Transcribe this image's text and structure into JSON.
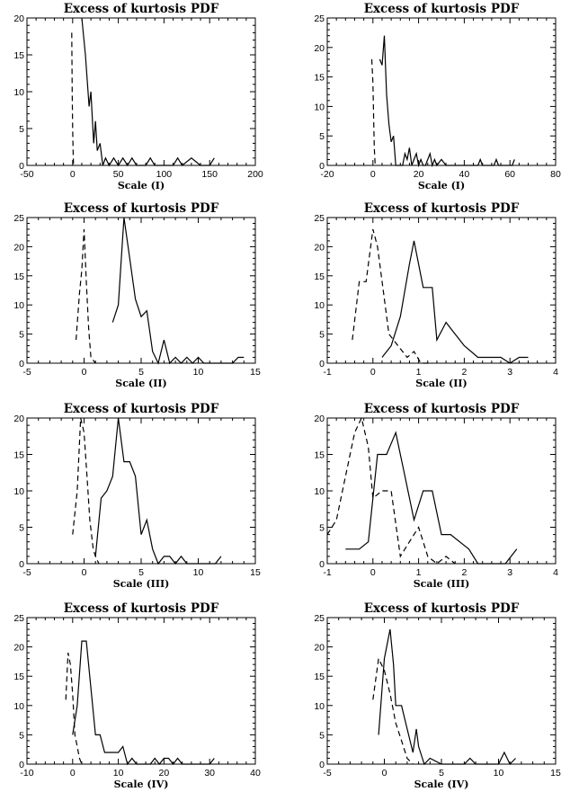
{
  "chart_data": [
    {
      "type": "line",
      "title": "Excess of kurtosis PDF",
      "xlabel": "Scale (I)",
      "xlim": [
        -50,
        200
      ],
      "ylim": [
        0,
        20
      ],
      "xticks": [
        -50,
        0,
        50,
        100,
        150,
        200
      ],
      "yticks": [
        0,
        5,
        10,
        15,
        20
      ],
      "series": [
        {
          "style": "solid",
          "x": [
            10,
            14,
            18,
            20,
            23,
            25,
            27,
            30,
            33,
            36,
            40,
            45,
            50,
            55,
            60,
            65,
            70,
            75,
            80,
            85,
            90,
            100,
            110,
            115,
            120,
            130,
            140,
            150,
            155
          ],
          "y": [
            20,
            15,
            8,
            10,
            3,
            6,
            2,
            3,
            0,
            1,
            0,
            1,
            0,
            1,
            0,
            1,
            0,
            0,
            0,
            1,
            0,
            0,
            0,
            1,
            0,
            1,
            0,
            0,
            1
          ]
        },
        {
          "style": "dashed",
          "x": [
            -1,
            -0.5,
            0,
            0.5,
            1
          ],
          "y": [
            18,
            10,
            5,
            2,
            0
          ]
        }
      ]
    },
    {
      "type": "line",
      "title": "Excess of kurtosis PDF",
      "xlabel": "Scale (I)",
      "xlim": [
        -20,
        80
      ],
      "ylim": [
        0,
        25
      ],
      "xticks": [
        -20,
        0,
        20,
        40,
        60,
        80
      ],
      "yticks": [
        0,
        5,
        10,
        15,
        20,
        25
      ],
      "series": [
        {
          "style": "solid",
          "x": [
            3,
            4,
            5,
            6,
            7,
            8,
            9,
            10,
            11,
            13,
            14,
            15,
            16,
            17,
            18,
            19,
            20,
            21,
            22,
            23,
            25,
            26,
            27,
            28,
            30,
            32,
            46,
            47,
            48,
            53,
            54,
            55,
            61,
            62
          ],
          "y": [
            18,
            17,
            22,
            12,
            7,
            4,
            5,
            0,
            0,
            0,
            2,
            1,
            3,
            0,
            1,
            2,
            0,
            1,
            0,
            0,
            2,
            0,
            1,
            0,
            1,
            0,
            0,
            1,
            0,
            0,
            1,
            0,
            0,
            1
          ]
        },
        {
          "style": "dashed",
          "x": [
            -0.5,
            0,
            0.3,
            0.6,
            1
          ],
          "y": [
            18,
            14,
            8,
            3,
            0
          ]
        }
      ]
    },
    {
      "type": "line",
      "title": "Excess of kurtosis PDF",
      "xlabel": "Scale (II)",
      "xlim": [
        -5,
        15
      ],
      "ylim": [
        0,
        25
      ],
      "xticks": [
        -5,
        0,
        5,
        10,
        15
      ],
      "yticks": [
        0,
        5,
        10,
        15,
        20,
        25
      ],
      "series": [
        {
          "style": "solid",
          "x": [
            2.5,
            3.0,
            3.5,
            4.0,
            4.5,
            5.0,
            5.5,
            6.0,
            6.5,
            7.0,
            7.5,
            8.0,
            8.5,
            9.0,
            9.5,
            10.0,
            10.5,
            11.0,
            11.5,
            12.0,
            12.5,
            13.0,
            13.5,
            14.0
          ],
          "y": [
            7,
            10,
            25,
            18,
            11,
            8,
            9,
            2,
            0,
            4,
            0,
            1,
            0,
            1,
            0,
            1,
            0,
            0,
            0,
            0,
            0,
            0,
            1,
            1
          ]
        },
        {
          "style": "dashed",
          "x": [
            -0.7,
            -0.4,
            -0.2,
            0.0,
            0.2,
            0.4,
            0.6,
            1.0
          ],
          "y": [
            4,
            12,
            16,
            23,
            14,
            6,
            1,
            0
          ]
        }
      ]
    },
    {
      "type": "line",
      "title": "Excess of kurtosis PDF",
      "xlabel": "Scale (II)",
      "xlim": [
        -1,
        4
      ],
      "ylim": [
        0,
        25
      ],
      "xticks": [
        -1,
        0,
        1,
        2,
        3,
        4
      ],
      "yticks": [
        0,
        5,
        10,
        15,
        20,
        25
      ],
      "series": [
        {
          "style": "solid",
          "x": [
            0.2,
            0.4,
            0.6,
            0.8,
            0.9,
            1.1,
            1.3,
            1.4,
            1.6,
            1.8,
            2.0,
            2.3,
            2.6,
            2.8,
            3.0,
            3.2,
            3.4
          ],
          "y": [
            1,
            3,
            8,
            17,
            21,
            13,
            13,
            4,
            7,
            5,
            3,
            1,
            1,
            1,
            0,
            1,
            1
          ]
        },
        {
          "style": "dashed",
          "x": [
            -0.45,
            -0.3,
            -0.15,
            0.0,
            0.1,
            0.2,
            0.35,
            0.55,
            0.75,
            0.9,
            1.05,
            1.3
          ],
          "y": [
            4,
            14,
            14,
            23,
            20,
            14,
            5,
            3,
            1,
            2,
            0,
            0
          ]
        }
      ]
    },
    {
      "type": "line",
      "title": "Excess of kurtosis PDF",
      "xlabel": "Scale (III)",
      "xlim": [
        -5,
        15
      ],
      "ylim": [
        0,
        20
      ],
      "xticks": [
        -5,
        0,
        5,
        10,
        15
      ],
      "yticks": [
        0,
        5,
        10,
        15,
        20
      ],
      "series": [
        {
          "style": "solid",
          "x": [
            1.0,
            1.5,
            2.0,
            2.5,
            3.0,
            3.5,
            4.0,
            4.5,
            5.0,
            5.5,
            6.0,
            6.5,
            7.0,
            7.5,
            8.0,
            8.5,
            9.0,
            9.5,
            10.0,
            10.5,
            11.0,
            11.5,
            12.0
          ],
          "y": [
            1,
            9,
            10,
            12,
            20,
            14,
            14,
            12,
            4,
            6,
            2,
            0,
            1,
            1,
            0,
            1,
            0,
            0,
            0,
            0,
            0,
            0,
            1
          ]
        },
        {
          "style": "dashed",
          "x": [
            -1.0,
            -0.6,
            -0.3,
            0.0,
            0.3,
            0.5,
            0.8,
            1.0,
            1.3
          ],
          "y": [
            4,
            10,
            20,
            18,
            11,
            6,
            2,
            1,
            0
          ]
        }
      ]
    },
    {
      "type": "line",
      "title": "Excess of kurtosis PDF",
      "xlabel": "Scale (III)",
      "xlim": [
        -1,
        4
      ],
      "ylim": [
        0,
        20
      ],
      "xticks": [
        -1,
        0,
        1,
        2,
        3,
        4
      ],
      "yticks": [
        0,
        5,
        10,
        15,
        20
      ],
      "series": [
        {
          "style": "solid",
          "x": [
            -0.6,
            -0.3,
            -0.1,
            0.1,
            0.3,
            0.5,
            0.7,
            0.9,
            1.1,
            1.3,
            1.5,
            1.7,
            1.9,
            2.1,
            2.3,
            2.5,
            2.7,
            2.9,
            3.15
          ],
          "y": [
            2,
            2,
            3,
            15,
            15,
            18,
            12,
            6,
            10,
            10,
            4,
            4,
            3,
            2,
            0,
            0,
            0,
            0,
            2
          ]
        },
        {
          "style": "dashed",
          "x": [
            -1.0,
            -0.8,
            -0.6,
            -0.4,
            -0.25,
            -0.1,
            0.0,
            0.2,
            0.4,
            0.6,
            0.8,
            1.0,
            1.2,
            1.4,
            1.6,
            1.8
          ],
          "y": [
            4,
            6,
            12,
            18,
            20,
            16,
            9,
            10,
            10,
            1,
            3,
            5,
            1,
            0,
            1,
            0
          ]
        }
      ]
    },
    {
      "type": "line",
      "title": "Excess of kurtosis PDF",
      "xlabel": "Scale (IV)",
      "xlim": [
        -10,
        40
      ],
      "ylim": [
        0,
        25
      ],
      "xticks": [
        -10,
        0,
        10,
        20,
        30,
        40
      ],
      "yticks": [
        0,
        5,
        10,
        15,
        20,
        25
      ],
      "series": [
        {
          "style": "solid",
          "x": [
            0,
            1,
            2,
            3,
            4,
            5,
            6,
            7,
            8,
            9,
            10,
            11,
            12,
            13,
            14,
            15,
            16,
            17,
            18,
            19,
            20,
            21,
            22,
            23,
            24,
            25,
            30,
            31
          ],
          "y": [
            5,
            10,
            21,
            21,
            13,
            5,
            5,
            2,
            2,
            2,
            2,
            3,
            0,
            1,
            0,
            0,
            0,
            0,
            1,
            0,
            1,
            1,
            0,
            1,
            0,
            0,
            0,
            1
          ]
        },
        {
          "style": "dashed",
          "x": [
            -1.5,
            -1,
            -0.5,
            0,
            0.5,
            1,
            1.5,
            2
          ],
          "y": [
            11,
            19,
            17,
            12,
            5,
            3,
            1,
            0
          ]
        }
      ]
    },
    {
      "type": "line",
      "title": "Excess of kurtosis PDF",
      "xlabel": "Scale (IV)",
      "xlim": [
        -5,
        15
      ],
      "ylim": [
        0,
        25
      ],
      "xticks": [
        -5,
        0,
        5,
        10,
        15
      ],
      "yticks": [
        0,
        5,
        10,
        15,
        20,
        25
      ],
      "series": [
        {
          "style": "solid",
          "x": [
            -0.5,
            0,
            0.5,
            0.8,
            1,
            1.5,
            2,
            2.5,
            2.8,
            3,
            3.5,
            4,
            5,
            6,
            7,
            7.5,
            8,
            9,
            10,
            10.5,
            11,
            11.5
          ],
          "y": [
            5,
            18,
            23,
            17,
            10,
            10,
            6,
            2,
            6,
            3,
            0,
            1,
            0,
            0,
            0,
            1,
            0,
            0,
            0,
            2,
            0,
            1
          ]
        },
        {
          "style": "dashed",
          "x": [
            -1,
            -0.5,
            0,
            0.5,
            1,
            1.5,
            2,
            2.5
          ],
          "y": [
            11,
            18,
            16,
            12,
            7,
            4,
            1,
            0
          ]
        }
      ]
    }
  ]
}
